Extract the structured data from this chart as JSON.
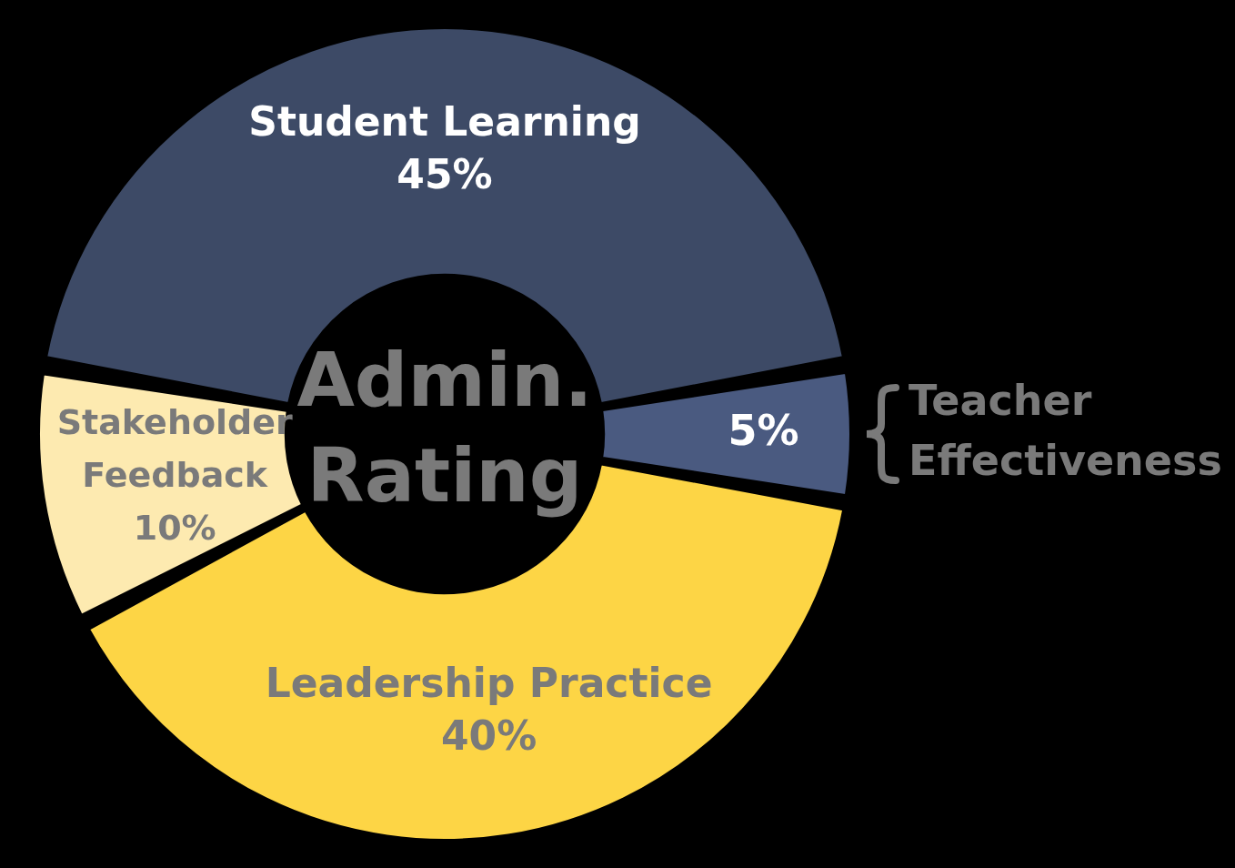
{
  "chart_data": {
    "type": "donut",
    "title": "Admin. Rating",
    "categories": [
      "Student Learning",
      "Teacher Effectiveness",
      "Leadership Practice",
      "Stakeholder Feedback"
    ],
    "values": [
      45,
      5,
      40,
      10
    ],
    "colors": [
      "#3d4a66",
      "#4a5a80",
      "#fdd545",
      "#fdeab0"
    ],
    "value_labels": [
      "45%",
      "5%",
      "40%",
      "10%"
    ],
    "legend": false
  }
}
